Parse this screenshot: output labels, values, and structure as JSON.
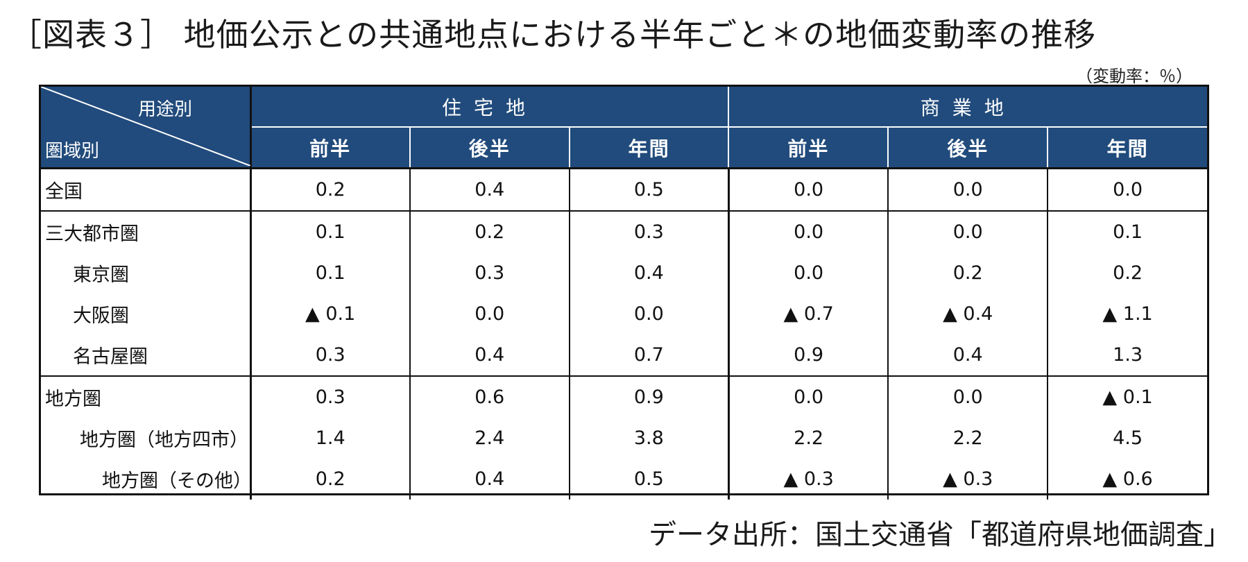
{
  "title": "［図表３］ 地価公示との共通地点における半年ごと＊の地価変動率の推移",
  "unit": "（変動率：％）",
  "source": "データ出所：国土交通省「都道府県地価調査」",
  "colors": {
    "header_bg": "#214b7c",
    "header_text": "#ffffff",
    "border": "#111111"
  },
  "chart_data": {
    "type": "table",
    "corner": {
      "top": "用途別",
      "bottom": "圏域別"
    },
    "groups": [
      "住宅地",
      "商業地"
    ],
    "subheaders": [
      "前半",
      "後半",
      "年間",
      "前半",
      "後半",
      "年間"
    ],
    "negative_marker": "▲",
    "rows": [
      {
        "label": "全国",
        "indent": 0,
        "cells": [
          "0.2",
          "0.4",
          "0.5",
          "0.0",
          "0.0",
          "0.0"
        ]
      },
      {
        "label": "三大都市圏",
        "indent": 0,
        "cells": [
          "0.1",
          "0.2",
          "0.3",
          "0.0",
          "0.0",
          "0.1"
        ]
      },
      {
        "label": "東京圏",
        "indent": 1,
        "cells": [
          "0.1",
          "0.3",
          "0.4",
          "0.0",
          "0.2",
          "0.2"
        ]
      },
      {
        "label": "大阪圏",
        "indent": 1,
        "cells": [
          "▲ 0.1",
          "0.0",
          "0.0",
          "▲ 0.7",
          "▲ 0.4",
          "▲ 1.1"
        ]
      },
      {
        "label": "名古屋圏",
        "indent": 1,
        "cells": [
          "0.3",
          "0.4",
          "0.7",
          "0.9",
          "0.4",
          "1.3"
        ]
      },
      {
        "label": "地方圏",
        "indent": 0,
        "cells": [
          "0.3",
          "0.6",
          "0.9",
          "0.0",
          "0.0",
          "▲ 0.1"
        ]
      },
      {
        "label": "地方圏（地方四市）",
        "indent": 2,
        "cells": [
          "1.4",
          "2.4",
          "3.8",
          "2.2",
          "2.2",
          "4.5"
        ]
      },
      {
        "label": "地方圏（その他）",
        "indent": 3,
        "cells": [
          "0.2",
          "0.4",
          "0.5",
          "▲ 0.3",
          "▲ 0.3",
          "▲ 0.6"
        ]
      }
    ]
  }
}
